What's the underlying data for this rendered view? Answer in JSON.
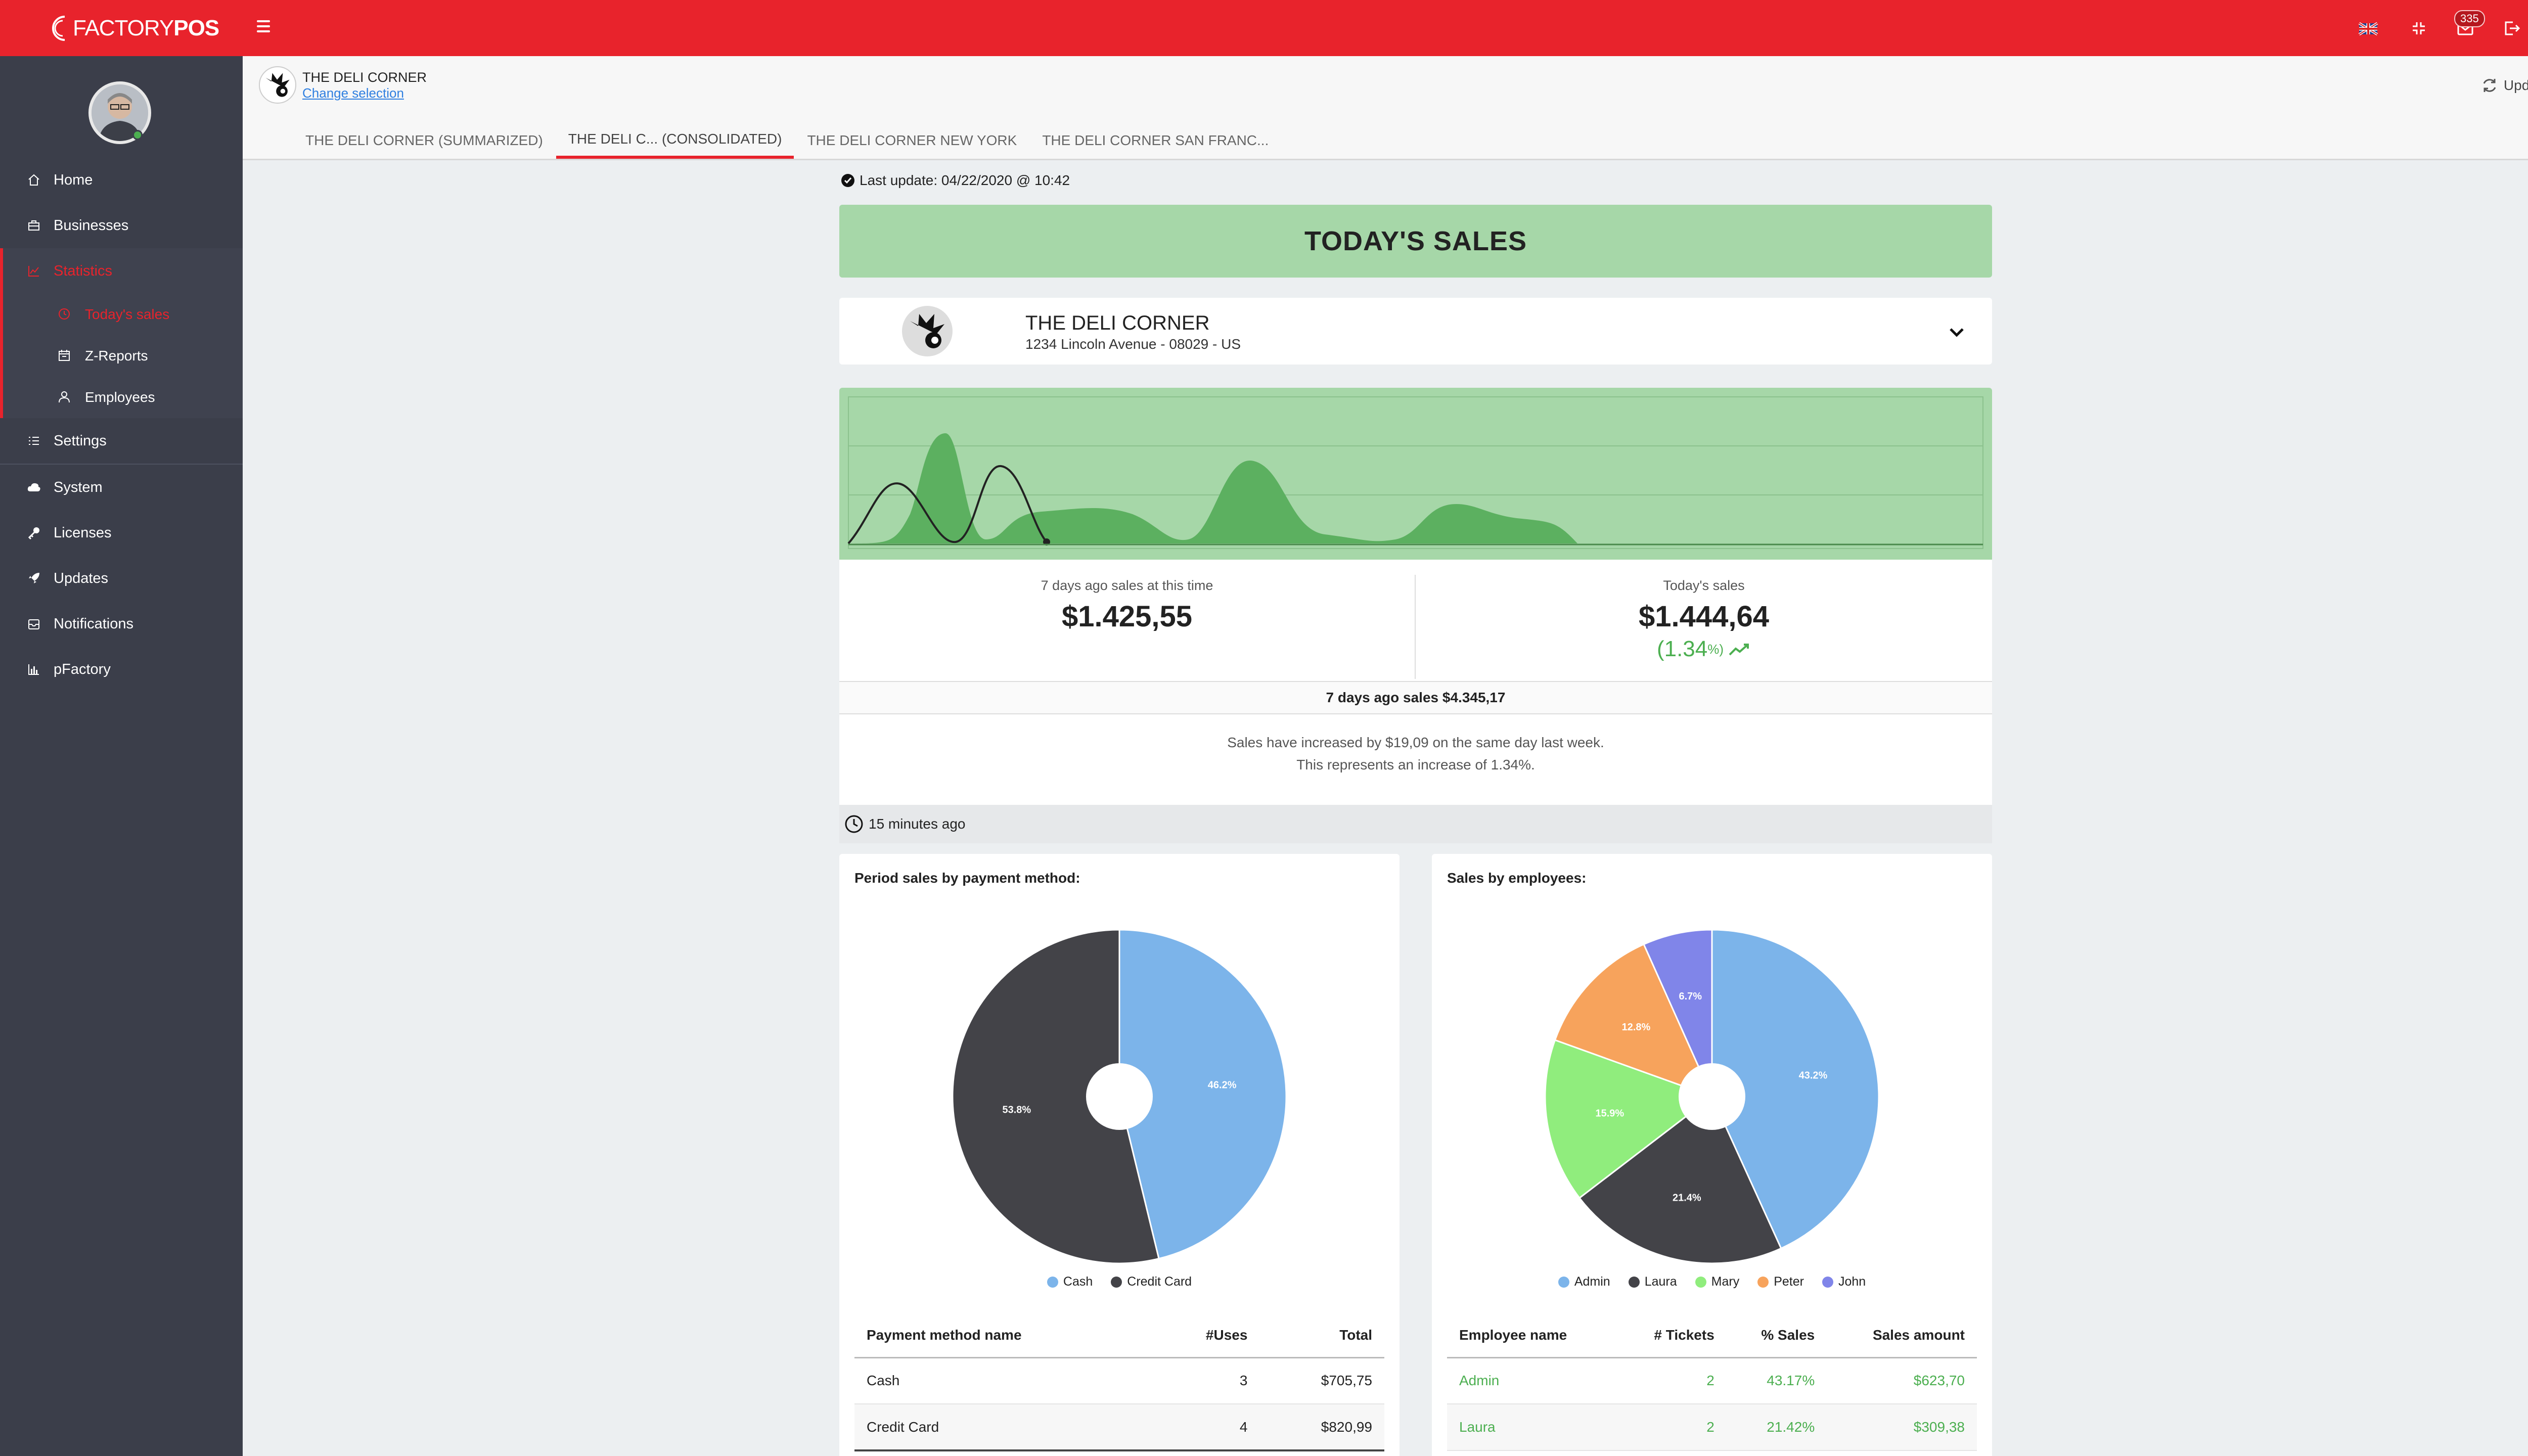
{
  "topbar": {
    "logo_regular": "FACTORY",
    "logo_bold": "POS",
    "notification_count": "335",
    "icons": [
      "uk-flag-icon",
      "compress-icon",
      "mail-icon",
      "logout-icon",
      "user-avatar-icon"
    ]
  },
  "sidebar": {
    "items": [
      {
        "label": "Home",
        "icon": "home-icon"
      },
      {
        "label": "Businesses",
        "icon": "briefcase-icon"
      },
      {
        "label": "Statistics",
        "icon": "chart-icon"
      },
      {
        "label": "Settings",
        "icon": "list-icon"
      },
      {
        "label": "System",
        "icon": "cloud-icon"
      },
      {
        "label": "Licenses",
        "icon": "key-icon"
      },
      {
        "label": "Updates",
        "icon": "rocket-icon"
      },
      {
        "label": "Notifications",
        "icon": "bell-icon"
      },
      {
        "label": "pFactory",
        "icon": "bar-chart-icon"
      }
    ],
    "subitems": [
      {
        "label": "Today's sales",
        "icon": "clock-icon"
      },
      {
        "label": "Z-Reports",
        "icon": "calendar-icon"
      },
      {
        "label": "Employees",
        "icon": "user-icon"
      }
    ]
  },
  "header": {
    "business_name": "THE DELI CORNER",
    "change_selection": "Change selection",
    "update_all": "Update all",
    "tabs": [
      "THE DELI CORNER (SUMMARIZED)",
      "THE DELI C... (CONSOLIDATED)",
      "THE DELI CORNER NEW YORK",
      "THE DELI CORNER SAN FRANC..."
    ]
  },
  "main": {
    "last_update": "Last update: 04/22/2020 @ 10:42",
    "banner": "TODAY'S SALES",
    "store": {
      "name": "THE DELI CORNER",
      "address": "1234 Lincoln Avenue - 08029 - US"
    },
    "stats": {
      "left_label": "7 days ago sales at this time",
      "left_value": "$1.425,55",
      "right_label": "Today's sales",
      "right_value": "$1.444,64",
      "pct_value": "(1.34",
      "pct_suffix": "%)"
    },
    "prev_sales": "7 days ago sales $4.345,17",
    "desc_line1": "Sales have increased by $19,09 on the same day last week.",
    "desc_line2": "This represents an increase of 1.34%.",
    "ago": "15 minutes ago"
  },
  "payments": {
    "title": "Period sales by payment method:",
    "columns": [
      "Payment method name",
      "#Uses",
      "Total"
    ],
    "rows": [
      {
        "name": "Cash",
        "uses": "3",
        "total": "$705,75"
      },
      {
        "name": "Credit Card",
        "uses": "4",
        "total": "$820,99"
      }
    ],
    "legend": [
      "Cash",
      "Credit Card"
    ]
  },
  "employees": {
    "title": "Sales by employees:",
    "columns": [
      "Employee name",
      "# Tickets",
      "% Sales",
      "Sales amount"
    ],
    "rows": [
      {
        "name": "Admin",
        "tickets": "2",
        "pct": "43.17%",
        "amount": "$623,70"
      },
      {
        "name": "Laura",
        "tickets": "2",
        "pct": "21.42%",
        "amount": "$309,38"
      }
    ],
    "legend": [
      "Admin",
      "Laura",
      "Mary",
      "Peter",
      "John"
    ]
  },
  "chart_data": [
    {
      "type": "pie",
      "title": "Period sales by payment method:",
      "categories": [
        "Cash",
        "Credit Card"
      ],
      "values": [
        46.2,
        53.8
      ],
      "labels": [
        "46.2%",
        "53.8%"
      ],
      "colors": [
        "#7cb4ea",
        "#434348"
      ]
    },
    {
      "type": "pie",
      "title": "Sales by employees:",
      "categories": [
        "Admin",
        "Laura",
        "Mary",
        "Peter",
        "John"
      ],
      "values": [
        43.2,
        21.4,
        15.9,
        12.8,
        6.7
      ],
      "labels": [
        "43.2%",
        "21.4%",
        "15.9%",
        "12.8%",
        "6.7%"
      ],
      "colors": [
        "#7cb4ea",
        "#434348",
        "#90ed7d",
        "#f7a35c",
        "#8085e9"
      ]
    }
  ]
}
